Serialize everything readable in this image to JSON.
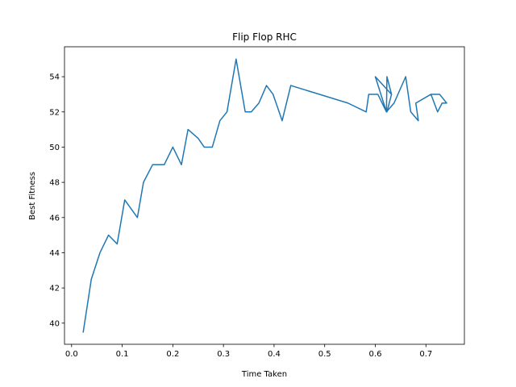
{
  "chart_data": {
    "type": "line",
    "title": "Flip Flop RHC",
    "xlabel": "Time Taken",
    "ylabel": "Best Fitness",
    "xlim": [
      -0.014,
      0.776
    ],
    "ylim": [
      38.8,
      55.7
    ],
    "xticks": [
      0.0,
      0.1,
      0.2,
      0.3,
      0.4,
      0.5,
      0.6,
      0.7
    ],
    "xtick_labels": [
      "0.0",
      "0.1",
      "0.2",
      "0.3",
      "0.4",
      "0.5",
      "0.6",
      "0.7"
    ],
    "yticks": [
      40,
      42,
      44,
      46,
      48,
      50,
      52,
      54
    ],
    "ytick_labels": [
      "40",
      "42",
      "44",
      "46",
      "48",
      "50",
      "52",
      "54"
    ],
    "grid": false,
    "series": [
      {
        "color": "#1f77b4",
        "x": [
          0.023,
          0.039,
          0.056,
          0.073,
          0.09,
          0.105,
          0.13,
          0.142,
          0.16,
          0.183,
          0.2,
          0.217,
          0.23,
          0.25,
          0.262,
          0.278,
          0.293,
          0.307,
          0.325,
          0.343,
          0.355,
          0.37,
          0.385,
          0.398,
          0.416,
          0.433,
          0.546,
          0.582,
          0.587,
          0.605,
          0.622,
          0.623,
          0.632,
          0.623,
          0.632,
          0.6,
          0.622,
          0.637,
          0.66,
          0.67,
          0.685,
          0.68,
          0.71,
          0.723,
          0.732,
          0.741,
          0.727,
          0.72,
          0.712
        ],
        "y": [
          39.5,
          42.5,
          44.0,
          45.0,
          44.5,
          47.0,
          46.0,
          48.0,
          49.0,
          49.0,
          50.0,
          49.0,
          51.0,
          50.5,
          50.0,
          50.0,
          51.5,
          52.0,
          55.0,
          52.0,
          52.0,
          52.5,
          53.5,
          53.0,
          51.5,
          53.5,
          52.5,
          52.0,
          53.0,
          53.0,
          52.0,
          54.0,
          53.0,
          52.0,
          53.0,
          54.0,
          52.0,
          52.5,
          54.0,
          52.0,
          51.5,
          52.5,
          53.0,
          52.0,
          52.5,
          52.5,
          53.0,
          53.0,
          53.0
        ]
      }
    ]
  }
}
